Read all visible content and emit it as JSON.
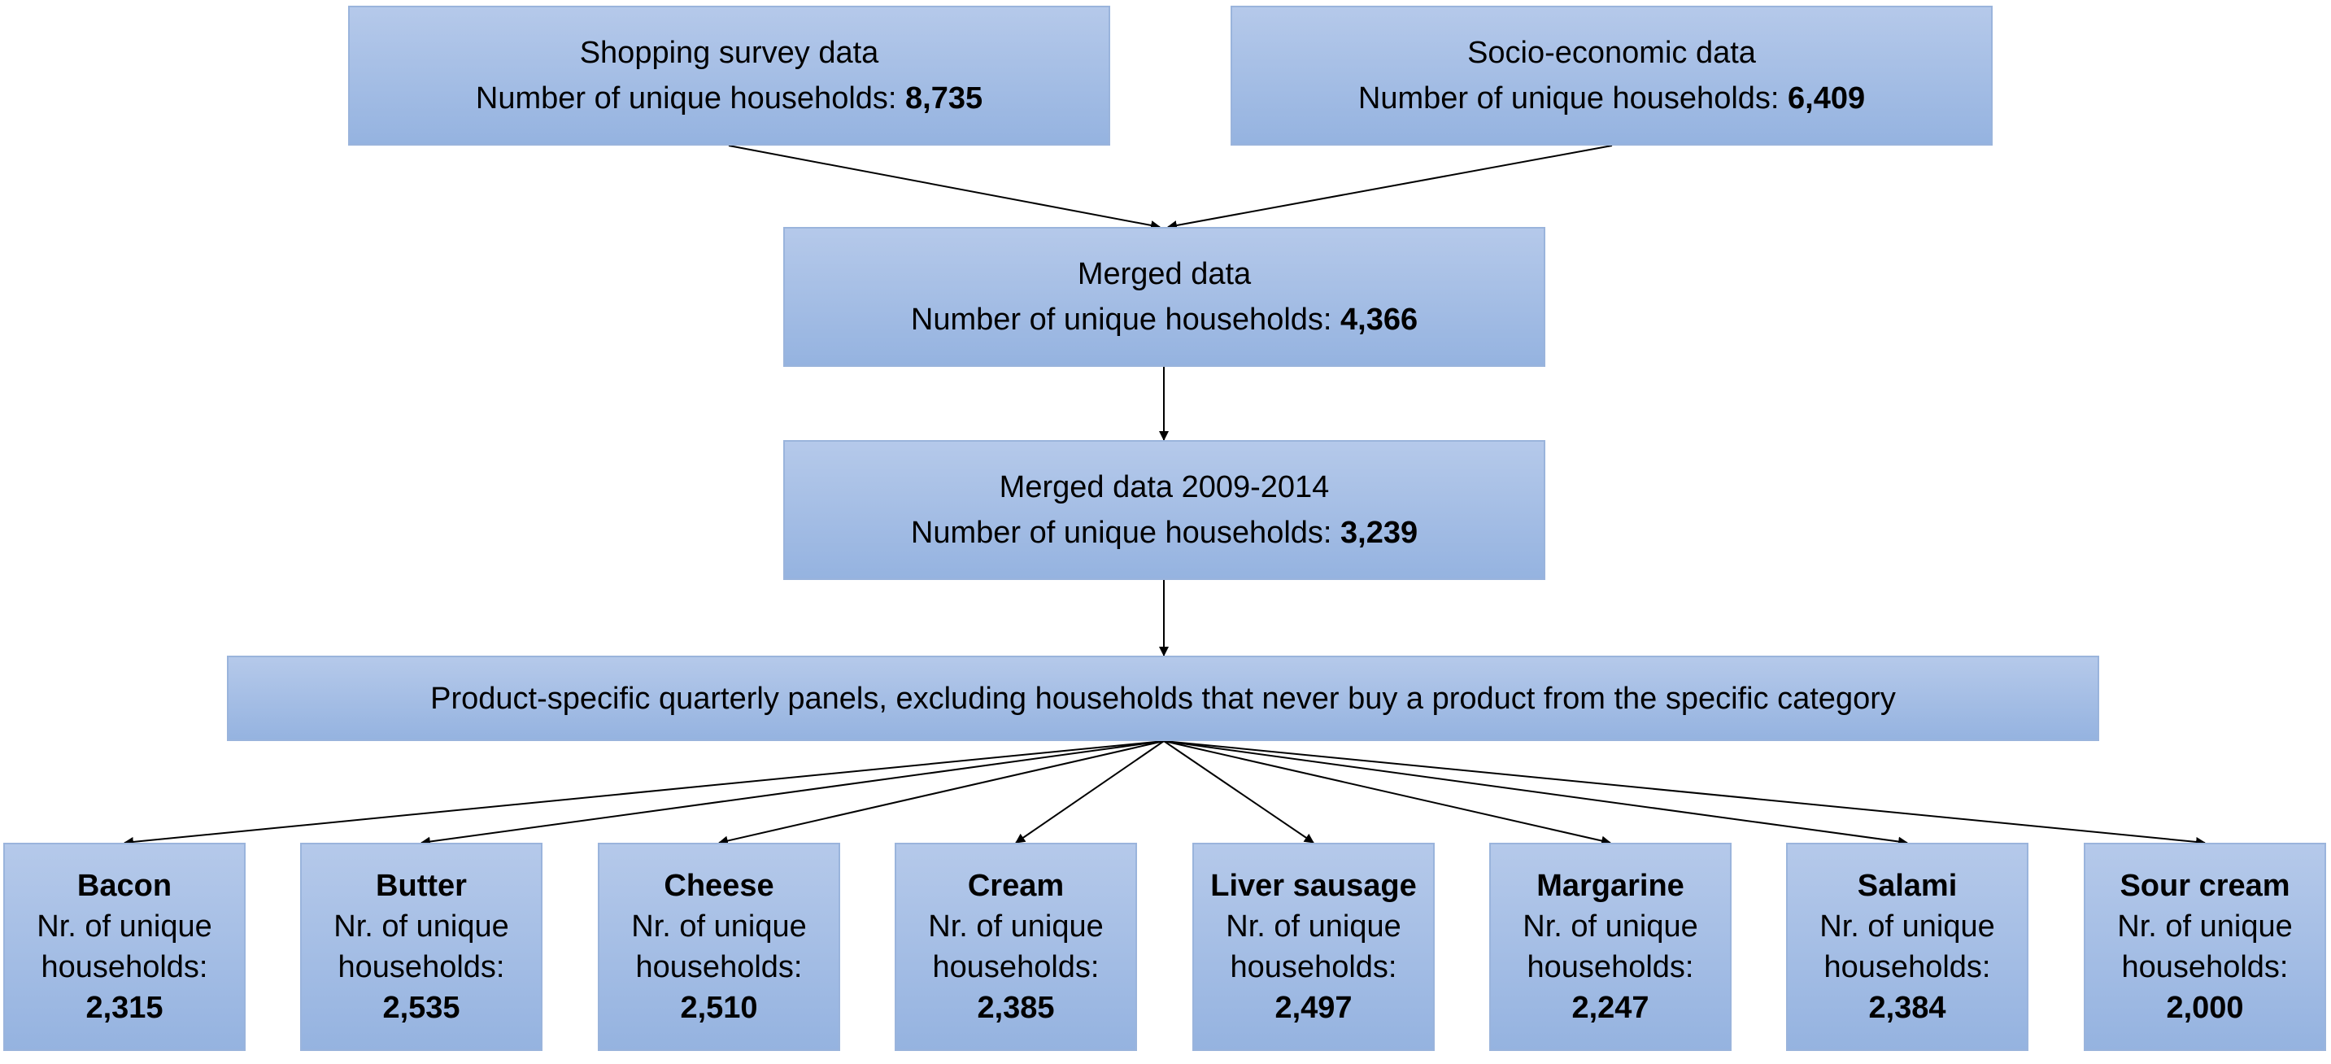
{
  "source_boxes": [
    {
      "title": "Shopping survey data",
      "count_label": "Number of unique households: ",
      "count": "8,735"
    },
    {
      "title": "Socio-economic data",
      "count_label": "Number of unique households: ",
      "count": "6,409"
    }
  ],
  "merged": {
    "title": "Merged data",
    "count_label": "Number of unique households: ",
    "count": "4,366"
  },
  "merged_period": {
    "title": "Merged data 2009-2014",
    "count_label": "Number of unique households: ",
    "count": "3,239"
  },
  "panel": {
    "text": "Product-specific quarterly panels, excluding households that never buy a product from the specific category"
  },
  "products": [
    {
      "name": "Bacon",
      "label_1": "Nr. of unique",
      "label_2": "households:",
      "count": "2,315"
    },
    {
      "name": "Butter",
      "label_1": "Nr. of unique",
      "label_2": "households:",
      "count": "2,535"
    },
    {
      "name": "Cheese",
      "label_1": "Nr. of unique",
      "label_2": "households:",
      "count": "2,510"
    },
    {
      "name": "Cream",
      "label_1": "Nr. of unique",
      "label_2": "households:",
      "count": "2,385"
    },
    {
      "name": "Liver sausage",
      "label_1": "Nr. of unique",
      "label_2": "households:",
      "count": "2,497"
    },
    {
      "name": "Margarine",
      "label_1": "Nr. of unique",
      "label_2": "households:",
      "count": "2,247"
    },
    {
      "name": "Salami",
      "label_1": "Nr. of unique",
      "label_2": "households:",
      "count": "2,384"
    },
    {
      "name": "Sour cream",
      "label_1": "Nr. of unique",
      "label_2": "households:",
      "count": "2,000"
    }
  ],
  "colors": {
    "box_fill_top": "#b5c9ea",
    "box_fill_bottom": "#95b3e0",
    "box_border": "#9ab4dc",
    "arrow": "#000000"
  }
}
